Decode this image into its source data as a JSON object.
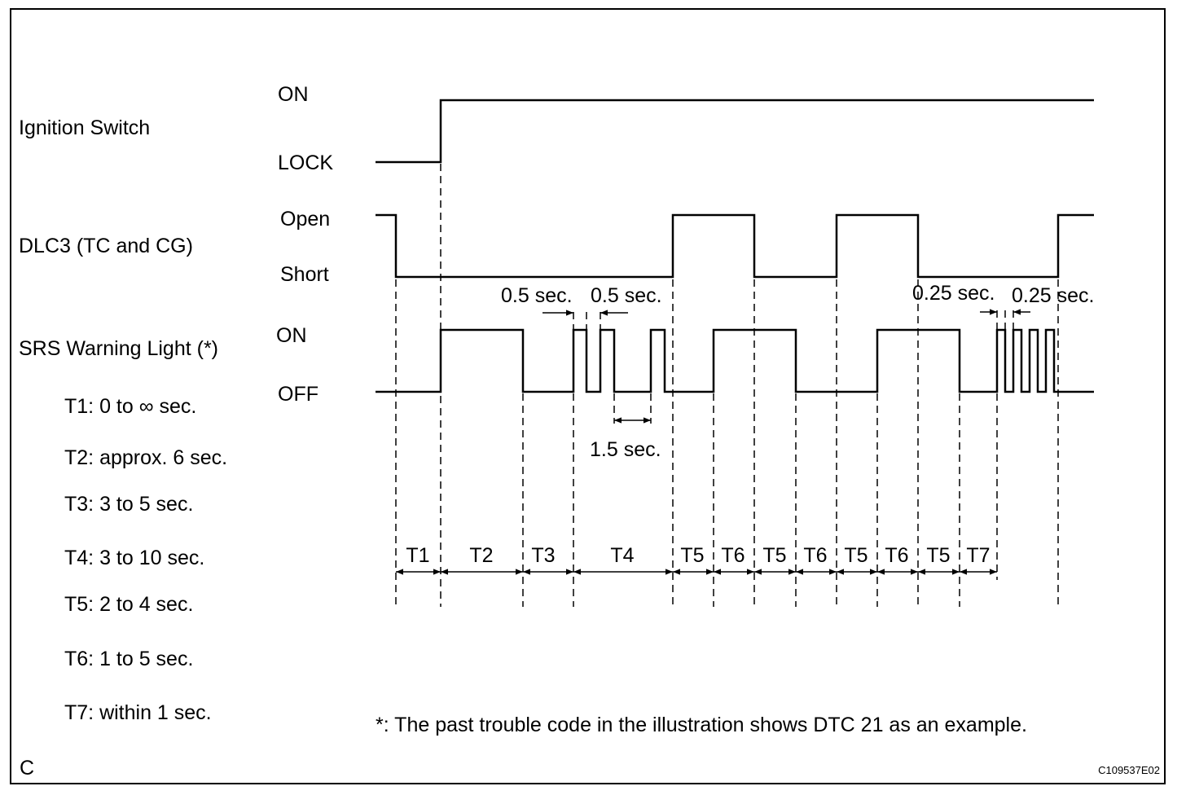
{
  "signals": {
    "ignition": {
      "label": "Ignition Switch",
      "high": "ON",
      "low": "LOCK"
    },
    "dlc3": {
      "label": "DLC3 (TC and CG)",
      "high": "Open",
      "low": "Short"
    },
    "srs": {
      "label": "SRS Warning Light (*)",
      "high": "ON",
      "low": "OFF"
    }
  },
  "legend": [
    "T1: 0 to ∞ sec.",
    "T2: approx. 6 sec.",
    "T3: 3 to 5 sec.",
    "T4: 3 to 10 sec.",
    "T5: 2 to 4 sec.",
    "T6: 1 to 5 sec.",
    "T7: within 1 sec."
  ],
  "intervals": [
    "T1",
    "T2",
    "T3",
    "T4",
    "T5",
    "T6",
    "T5",
    "T6",
    "T5",
    "T6",
    "T5",
    "T7"
  ],
  "annotations": {
    "pulse_half": "0.5 sec.",
    "gap": "1.5 sec.",
    "fast_pulse": "0.25 sec."
  },
  "footnote": "*: The past trouble code in the illustration shows DTC 21 as an example.",
  "corner_label": "C",
  "figure_id": "C109537E02"
}
